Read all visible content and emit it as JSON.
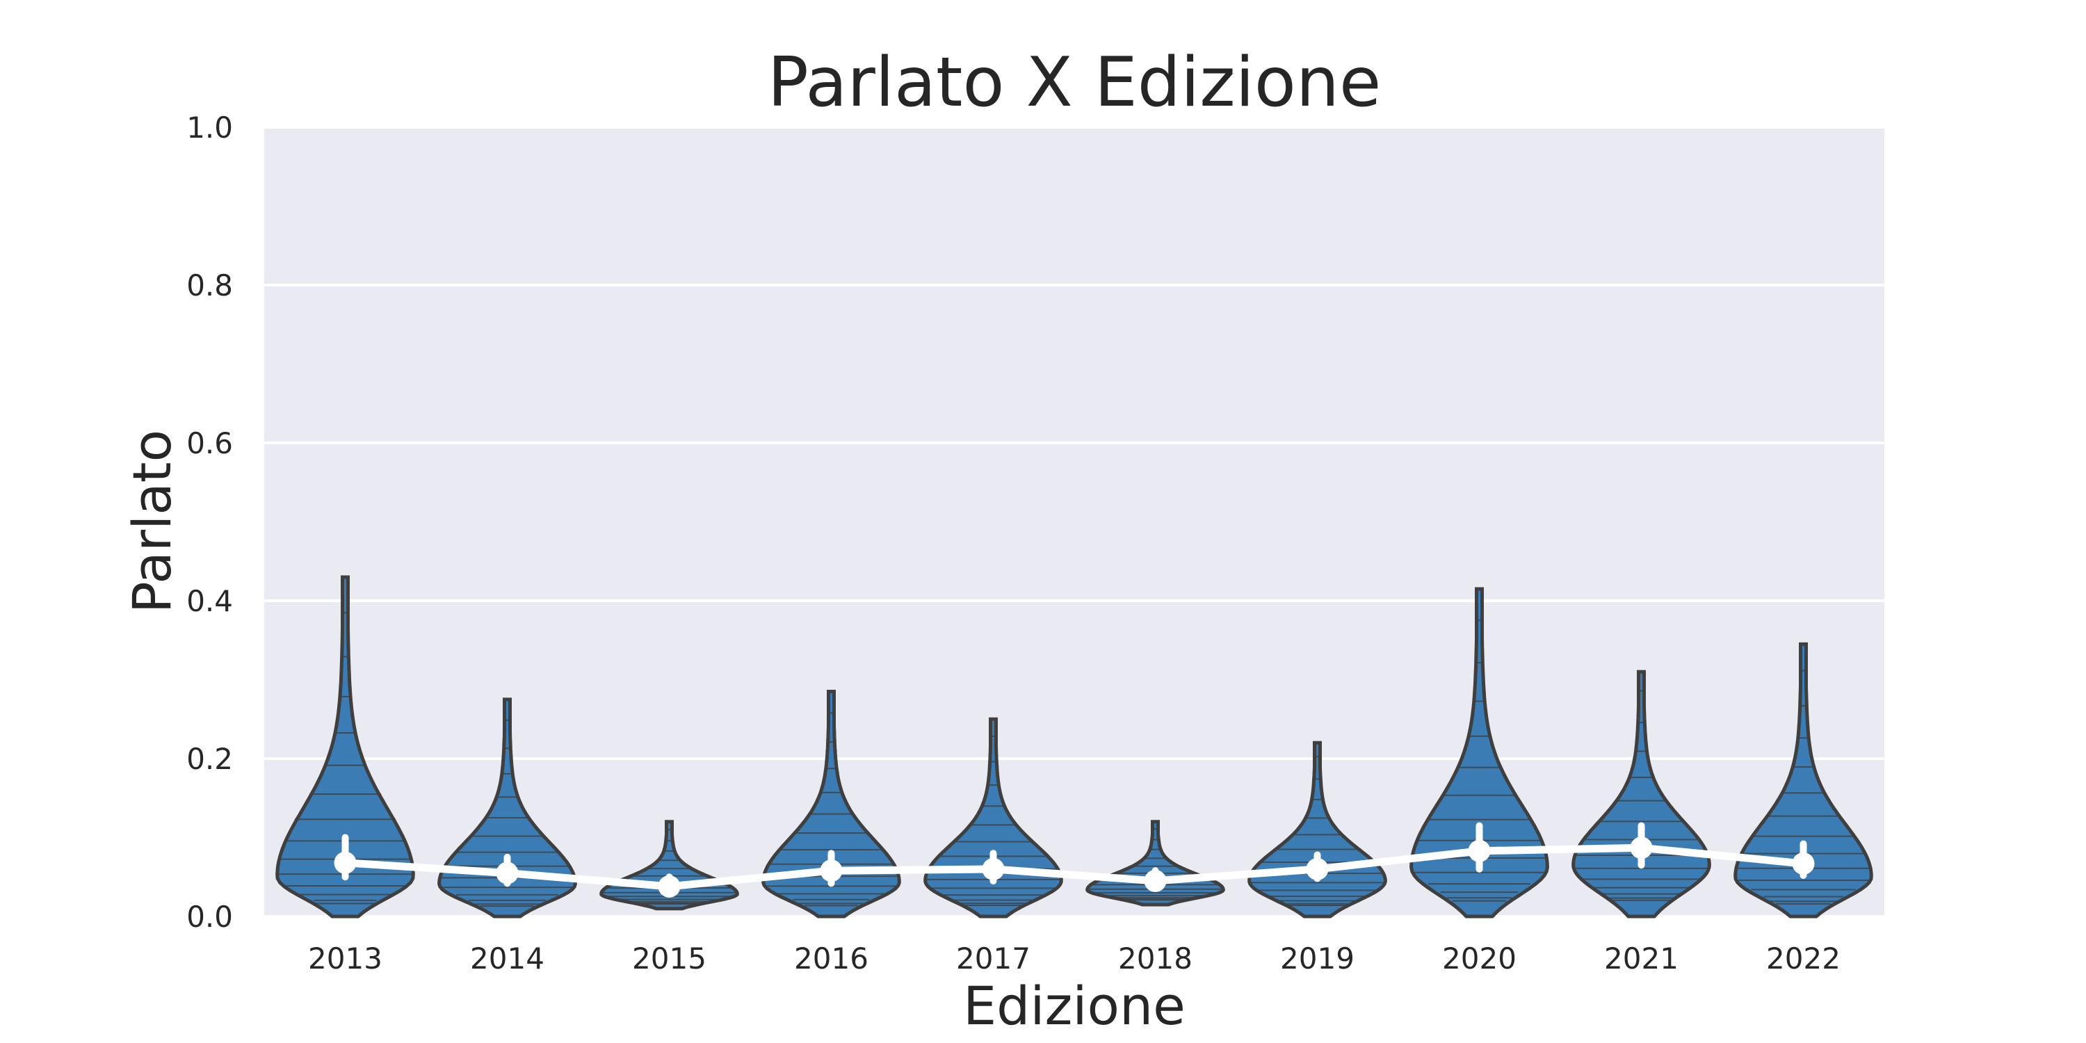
{
  "chart_data": {
    "type": "violin",
    "title": "Parlato X Edizione",
    "xlabel": "Edizione",
    "ylabel": "Parlato",
    "ylim": [
      0.0,
      1.0
    ],
    "yticks": [
      "0.0",
      "0.2",
      "0.4",
      "0.6",
      "0.8",
      "1.0"
    ],
    "grid": true,
    "categories": [
      "2013",
      "2014",
      "2015",
      "2016",
      "2017",
      "2018",
      "2019",
      "2020",
      "2021",
      "2022"
    ],
    "ranges": [
      [
        0.0,
        0.43
      ],
      [
        0.0,
        0.275
      ],
      [
        0.01,
        0.12
      ],
      [
        0.0,
        0.285
      ],
      [
        0.0,
        0.25
      ],
      [
        0.015,
        0.12
      ],
      [
        0.0,
        0.22
      ],
      [
        0.0,
        0.415
      ],
      [
        0.0,
        0.31
      ],
      [
        0.0,
        0.345
      ]
    ],
    "means": [
      0.068,
      0.055,
      0.038,
      0.058,
      0.06,
      0.045,
      0.06,
      0.083,
      0.087,
      0.067
    ],
    "ci": [
      [
        0.05,
        0.1
      ],
      [
        0.042,
        0.075
      ],
      [
        0.03,
        0.05
      ],
      [
        0.042,
        0.08
      ],
      [
        0.045,
        0.08
      ],
      [
        0.036,
        0.058
      ],
      [
        0.048,
        0.078
      ],
      [
        0.06,
        0.115
      ],
      [
        0.065,
        0.115
      ],
      [
        0.052,
        0.092
      ]
    ],
    "colors": {
      "violin_fill": "#3a7cb3",
      "violin_stroke": "#3f3f3f",
      "plot_bg": "#eaeaf2",
      "grid": "#ffffff",
      "mean_line": "#ffffff"
    }
  }
}
